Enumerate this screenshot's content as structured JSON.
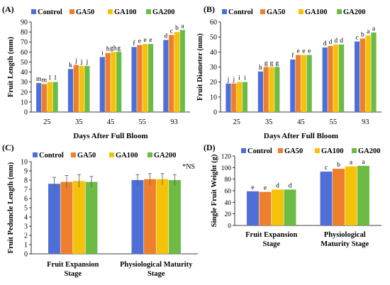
{
  "figure": {
    "colors": {
      "Control": "#4f6fd8",
      "GA50": "#ee7f2d",
      "GA100": "#f5c20a",
      "GA200": "#6cbb44"
    }
  },
  "chart_data": [
    {
      "id": "A",
      "panel_label": "(A)",
      "type": "bar",
      "series_names": [
        "Control",
        "GA50",
        "GA100",
        "GA200"
      ],
      "categories": [
        "25",
        "35",
        "45",
        "55",
        "93"
      ],
      "series": [
        {
          "name": "Control",
          "values": [
            29,
            43,
            55,
            65,
            72
          ]
        },
        {
          "name": "GA50",
          "values": [
            28,
            47,
            59,
            67,
            77
          ]
        },
        {
          "name": "GA100",
          "values": [
            30,
            46,
            60,
            68,
            80
          ]
        },
        {
          "name": "GA200",
          "values": [
            30,
            46,
            60,
            68,
            82
          ]
        }
      ],
      "letters": [
        [
          "m",
          "m",
          "l",
          "l"
        ],
        [
          "k",
          "j",
          "j",
          "j"
        ],
        [
          "i",
          "h",
          "gh",
          "g"
        ],
        [
          "f",
          "e",
          "e",
          "e"
        ],
        [
          "d",
          "c",
          "b",
          "a"
        ]
      ],
      "xlabel": "Days After Full Bloom",
      "ylabel": "Fruit Length (mm)",
      "ylim": [
        0,
        90
      ],
      "yticks": [
        0,
        10,
        20,
        30,
        40,
        50,
        60,
        70,
        80,
        90
      ],
      "annotation": "",
      "grid": false,
      "legend": "top"
    },
    {
      "id": "B",
      "panel_label": "(B)",
      "type": "bar",
      "series_names": [
        "Control",
        "GA50",
        "GA100",
        "GA200"
      ],
      "categories": [
        "25",
        "35",
        "45",
        "55",
        "93"
      ],
      "series": [
        {
          "name": "Control",
          "values": [
            19,
            27,
            35,
            43,
            47
          ]
        },
        {
          "name": "GA50",
          "values": [
            19,
            30,
            38,
            44,
            49
          ]
        },
        {
          "name": "GA100",
          "values": [
            20,
            30,
            38,
            45,
            51
          ]
        },
        {
          "name": "GA200",
          "values": [
            20,
            30,
            38,
            45,
            53
          ]
        }
      ],
      "letters": [
        [
          "j",
          "j",
          "i",
          "i"
        ],
        [
          "h",
          "g",
          "g",
          "g"
        ],
        [
          "f",
          "e",
          "e",
          "e"
        ],
        [
          "d",
          "d",
          "d",
          "d"
        ],
        [
          "c",
          "b",
          "a",
          "a"
        ]
      ],
      "xlabel": "Days After Full Bloom",
      "ylabel": "Fruit Diameter (mm)",
      "ylim": [
        0,
        60
      ],
      "yticks": [
        0,
        10,
        20,
        30,
        40,
        50,
        60
      ],
      "annotation": "",
      "grid": false,
      "legend": "top"
    },
    {
      "id": "C",
      "panel_label": "(C)",
      "type": "bar",
      "series_names": [
        "Control",
        "GA50",
        "GA100",
        "GA200"
      ],
      "categories": [
        "Fruit Expansion\nStage",
        "Physiological Maturity\nStage"
      ],
      "series": [
        {
          "name": "Control",
          "values": [
            7.6,
            8.0
          ]
        },
        {
          "name": "GA50",
          "values": [
            7.8,
            8.1
          ]
        },
        {
          "name": "GA100",
          "values": [
            7.9,
            8.1
          ]
        },
        {
          "name": "GA200",
          "values": [
            7.8,
            8.0
          ]
        }
      ],
      "errors": [
        [
          0.7,
          0.7,
          0.7,
          0.6
        ],
        [
          0.6,
          0.6,
          0.6,
          0.6
        ]
      ],
      "letters": [
        [
          "",
          "",
          "",
          ""
        ],
        [
          "",
          "",
          "",
          ""
        ]
      ],
      "xlabel": "",
      "ylabel": "Fruit Peduncle Length (mm)",
      "ylim": [
        0,
        10
      ],
      "yticks": [
        0,
        1,
        2,
        3,
        4,
        5,
        6,
        7,
        8,
        9,
        10
      ],
      "annotation": "*NS",
      "grid": false,
      "legend": "top"
    },
    {
      "id": "D",
      "panel_label": "(D)",
      "type": "bar",
      "series_names": [
        "Control",
        "GA50",
        "GA100",
        "GA200"
      ],
      "categories": [
        "Fruit Expansion\nStage",
        "Physiological\nMaturity Stage"
      ],
      "series": [
        {
          "name": "Control",
          "values": [
            59,
            93
          ]
        },
        {
          "name": "GA50",
          "values": [
            58,
            98
          ]
        },
        {
          "name": "GA100",
          "values": [
            62,
            102
          ]
        },
        {
          "name": "GA200",
          "values": [
            62,
            103
          ]
        }
      ],
      "letters": [
        [
          "e",
          "e",
          "d",
          "d"
        ],
        [
          "c",
          "b",
          "a",
          "a"
        ]
      ],
      "xlabel": "",
      "ylabel": "Single Fruit Weight (g)",
      "ylim": [
        0,
        120
      ],
      "yticks": [
        0,
        20,
        40,
        60,
        80,
        100,
        120
      ],
      "annotation": "",
      "grid": false,
      "legend": "top"
    }
  ]
}
